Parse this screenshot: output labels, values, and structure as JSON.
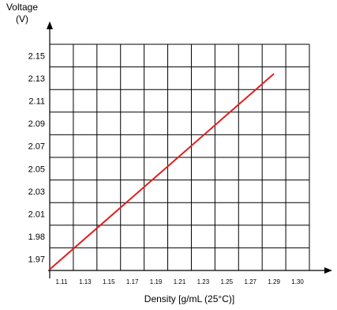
{
  "chart_data": {
    "type": "line",
    "ylabel": "Voltage",
    "yunit": "(V)",
    "xlabel": "Density [g/mL (25°C)]",
    "x_ticks": [
      "1.11",
      "1.13",
      "1.15",
      "1.17",
      "1.19",
      "1.21",
      "1.23",
      "1.25",
      "1.27",
      "1.29",
      "1.30"
    ],
    "y_ticks": [
      "2.15",
      "2.13",
      "2.11",
      "2.09",
      "2.07",
      "2.05",
      "2.03",
      "2.01",
      "1.98",
      "1.97"
    ],
    "grid": true,
    "series": [
      {
        "color": "#e02020",
        "x": [
          1.1,
          1.29
        ],
        "y": [
          1.961,
          2.134
        ]
      }
    ]
  }
}
